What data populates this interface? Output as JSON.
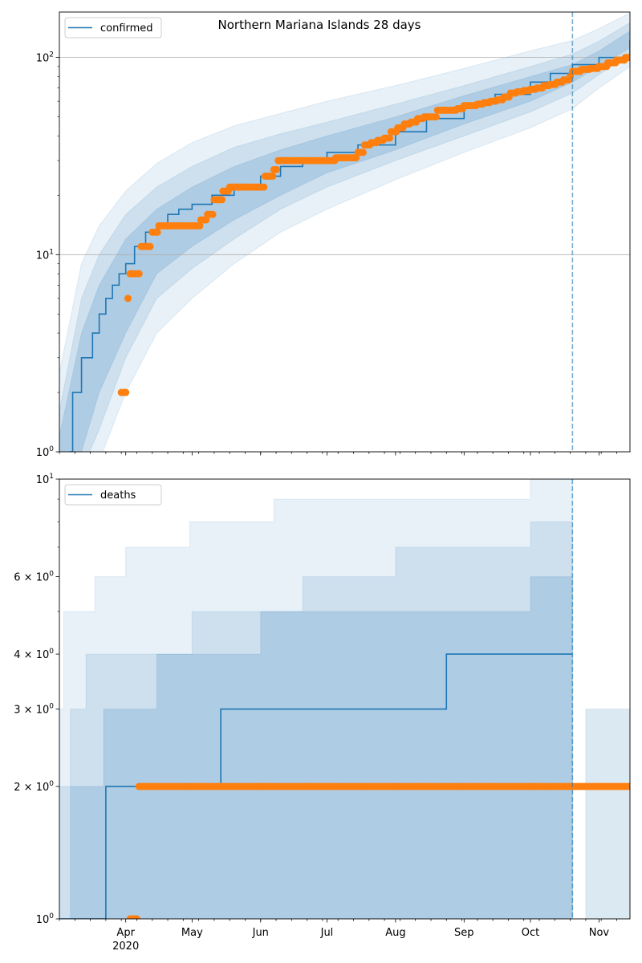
{
  "chart_data": [
    {
      "type": "line",
      "title": "Northern Mariana Islands 28 days",
      "yscale": "log",
      "ylim": [
        1,
        170
      ],
      "xlim": [
        "2020-03-02",
        "2020-11-15"
      ],
      "grid": "horizontal major",
      "legend": {
        "position": "top-left",
        "entries": [
          "confirmed"
        ]
      },
      "y_ticks": [
        {
          "value": 1,
          "base": "10",
          "exp": "0"
        },
        {
          "value": 10,
          "base": "10",
          "exp": "1"
        },
        {
          "value": 100,
          "base": "10",
          "exp": "2"
        }
      ],
      "forecast_start": "2020-10-20",
      "colors": {
        "model": "#1f77b4",
        "observed": "#ff7f0e",
        "band": "#1f77b4",
        "grid": "#b0b0b0"
      },
      "series": [
        {
          "name": "confirmed",
          "kind": "line",
          "x": [
            "2020-03-02",
            "2020-03-07",
            "2020-03-08",
            "2020-03-10",
            "2020-03-12",
            "2020-03-14",
            "2020-03-17",
            "2020-03-20",
            "2020-03-23",
            "2020-03-26",
            "2020-03-29",
            "2020-04-01",
            "2020-04-05",
            "2020-04-10",
            "2020-04-15",
            "2020-04-20",
            "2020-04-25",
            "2020-05-01",
            "2020-05-10",
            "2020-05-20",
            "2020-06-01",
            "2020-06-10",
            "2020-06-20",
            "2020-07-01",
            "2020-07-15",
            "2020-08-01",
            "2020-08-15",
            "2020-09-01",
            "2020-09-15",
            "2020-10-01",
            "2020-10-10",
            "2020-10-20",
            "2020-11-01",
            "2020-11-15"
          ],
          "y": [
            0.8,
            1,
            2,
            2,
            3,
            3,
            4,
            5,
            6,
            7,
            8,
            9,
            11,
            13,
            14,
            16,
            17,
            18,
            20,
            22,
            25,
            28,
            30,
            33,
            36,
            42,
            49,
            58,
            65,
            75,
            83,
            92,
            100,
            122
          ]
        },
        {
          "name": "observed confirmed",
          "kind": "scatter",
          "x": [
            "2020-03-30",
            "2020-04-01",
            "2020-04-02",
            "2020-04-03",
            "2020-04-07",
            "2020-04-08",
            "2020-04-12",
            "2020-04-13",
            "2020-04-16",
            "2020-04-20",
            "2020-04-23",
            "2020-04-27",
            "2020-05-01",
            "2020-05-05",
            "2020-05-08",
            "2020-05-11",
            "2020-05-15",
            "2020-05-18",
            "2020-05-22",
            "2020-05-26",
            "2020-05-30",
            "2020-06-03",
            "2020-06-07",
            "2020-06-09",
            "2020-06-12",
            "2020-06-15",
            "2020-06-19",
            "2020-06-23",
            "2020-06-27",
            "2020-07-01",
            "2020-07-05",
            "2020-07-09",
            "2020-07-13",
            "2020-07-15",
            "2020-07-18",
            "2020-07-21",
            "2020-07-24",
            "2020-07-27",
            "2020-07-30",
            "2020-08-02",
            "2020-08-05",
            "2020-08-08",
            "2020-08-11",
            "2020-08-14",
            "2020-08-17",
            "2020-08-20",
            "2020-08-23",
            "2020-08-26",
            "2020-08-29",
            "2020-09-01",
            "2020-09-04",
            "2020-09-07",
            "2020-09-10",
            "2020-09-13",
            "2020-09-16",
            "2020-09-19",
            "2020-09-22",
            "2020-09-25",
            "2020-09-28",
            "2020-10-01",
            "2020-10-04",
            "2020-10-07",
            "2020-10-10",
            "2020-10-13",
            "2020-10-16",
            "2020-10-19",
            "2020-10-20",
            "2020-10-24",
            "2020-10-28",
            "2020-11-01",
            "2020-11-05",
            "2020-11-09",
            "2020-11-13",
            "2020-11-15"
          ],
          "y": [
            2,
            2,
            6,
            8,
            8,
            11,
            11,
            13,
            14,
            14,
            14,
            14,
            14,
            15,
            16,
            19,
            21,
            22,
            22,
            22,
            22,
            25,
            27,
            30,
            30,
            30,
            30,
            30,
            30,
            30,
            31,
            31,
            31,
            33,
            36,
            37,
            38,
            39,
            42,
            44,
            46,
            47,
            49,
            50,
            50,
            54,
            54,
            54,
            55,
            57,
            57,
            58,
            59,
            60,
            61,
            63,
            66,
            67,
            68,
            69,
            70,
            72,
            73,
            75,
            77,
            80,
            85,
            87,
            88,
            90,
            94,
            97,
            100,
            100
          ]
        }
      ],
      "bands": [
        {
          "x": [
            "2020-03-02",
            "2020-03-12",
            "2020-03-20",
            "2020-04-01",
            "2020-04-15",
            "2020-05-01",
            "2020-05-20",
            "2020-06-10",
            "2020-07-01",
            "2020-08-01",
            "2020-09-01",
            "2020-10-01",
            "2020-10-20",
            "2020-11-01",
            "2020-11-15"
          ],
          "lo": [
            0.7,
            0.7,
            0.9,
            2,
            4,
            6,
            9,
            13,
            17,
            24,
            33,
            44,
            55,
            70,
            90
          ],
          "hi": [
            2.5,
            9,
            14,
            21,
            29,
            37,
            45,
            52,
            60,
            72,
            88,
            108,
            122,
            140,
            168
          ]
        },
        {
          "x": [
            "2020-03-02",
            "2020-03-12",
            "2020-03-20",
            "2020-04-01",
            "2020-04-15",
            "2020-05-01",
            "2020-05-20",
            "2020-06-10",
            "2020-07-01",
            "2020-08-01",
            "2020-09-01",
            "2020-10-01",
            "2020-10-20",
            "2020-11-01",
            "2020-11-15"
          ],
          "lo": [
            0.7,
            0.8,
            1.3,
            3,
            6,
            8.5,
            12,
            17,
            22,
            30,
            40,
            53,
            66,
            82,
            104
          ],
          "hi": [
            1.6,
            6,
            10,
            16,
            22,
            28,
            35,
            41,
            47,
            58,
            72,
            90,
            104,
            121,
            150
          ]
        },
        {
          "x": [
            "2020-03-02",
            "2020-03-12",
            "2020-03-20",
            "2020-04-01",
            "2020-04-15",
            "2020-05-01",
            "2020-05-20",
            "2020-06-10",
            "2020-07-01",
            "2020-08-01",
            "2020-09-01",
            "2020-10-01",
            "2020-10-20",
            "2020-11-01",
            "2020-11-15"
          ],
          "lo": [
            0.7,
            1,
            2,
            4,
            8,
            11,
            15,
            20,
            26,
            34,
            46,
            60,
            75,
            90,
            112
          ],
          "hi": [
            1.2,
            4,
            7,
            12,
            17,
            22,
            28,
            34,
            40,
            50,
            64,
            80,
            92,
            108,
            136
          ]
        }
      ]
    },
    {
      "type": "line",
      "title": "",
      "yscale": "log",
      "ylim": [
        1,
        10
      ],
      "xlim": [
        "2020-03-02",
        "2020-11-15"
      ],
      "legend": {
        "position": "top-left",
        "entries": [
          "deaths"
        ]
      },
      "y_ticks": [
        {
          "value": 1,
          "base": "10",
          "exp": "0",
          "coef": ""
        },
        {
          "value": 2,
          "base": "10",
          "exp": "0",
          "coef": "2 × "
        },
        {
          "value": 3,
          "base": "10",
          "exp": "0",
          "coef": "3 × "
        },
        {
          "value": 4,
          "base": "10",
          "exp": "0",
          "coef": "4 × "
        },
        {
          "value": 6,
          "base": "10",
          "exp": "0",
          "coef": "6 × "
        },
        {
          "value": 10,
          "base": "10",
          "exp": "1",
          "coef": ""
        }
      ],
      "forecast_start": "2020-10-20",
      "series": [
        {
          "name": "deaths",
          "kind": "step",
          "x": [
            "2020-03-02",
            "2020-03-23",
            "2020-04-08",
            "2020-05-14",
            "2020-08-24",
            "2020-10-20"
          ],
          "y": [
            1,
            2,
            2,
            3,
            4,
            4
          ]
        },
        {
          "name": "observed deaths",
          "kind": "scatter",
          "x": [
            "2020-04-03",
            "2020-04-06",
            "2020-04-07",
            "2020-05-01",
            "2020-06-01",
            "2020-07-01",
            "2020-08-01",
            "2020-09-01",
            "2020-10-01",
            "2020-11-01",
            "2020-11-15"
          ],
          "y": [
            1,
            1,
            2,
            2,
            2,
            2,
            2,
            2,
            2,
            2,
            2
          ]
        }
      ],
      "bands": [
        {
          "x": [
            "2020-03-02",
            "2020-03-04",
            "2020-03-18",
            "2020-04-01",
            "2020-04-30",
            "2020-06-07",
            "2020-08-01",
            "2020-10-01",
            "2020-10-20"
          ],
          "lo": [
            1,
            1,
            1,
            1,
            1,
            1,
            1,
            1,
            1
          ],
          "hi": [
            3,
            5,
            6,
            7,
            8,
            9,
            9,
            10,
            10
          ]
        },
        {
          "x": [
            "2020-03-02",
            "2020-03-07",
            "2020-03-14",
            "2020-04-03",
            "2020-05-01",
            "2020-06-20",
            "2020-08-01",
            "2020-10-01",
            "2020-10-20"
          ],
          "lo": [
            1,
            1,
            1,
            1,
            1,
            1,
            1,
            1,
            1
          ],
          "hi": [
            2,
            3,
            4,
            4,
            5,
            6,
            7,
            8,
            8
          ]
        },
        {
          "x": [
            "2020-03-02",
            "2020-03-07",
            "2020-03-22",
            "2020-04-15",
            "2020-06-01",
            "2020-08-01",
            "2020-10-01",
            "2020-10-20"
          ],
          "lo": [
            1,
            1,
            1,
            1,
            1,
            1,
            1,
            1
          ],
          "hi": [
            1,
            2,
            3,
            4,
            5,
            5,
            6,
            6
          ]
        }
      ],
      "post_bands": [
        {
          "x": [
            "2020-10-26",
            "2020-11-15"
          ],
          "lo": [
            1,
            1
          ],
          "hi": [
            3,
            4
          ]
        }
      ]
    }
  ],
  "x_axis": {
    "months": [
      {
        "date": "2020-04-01",
        "label": "Apr",
        "sub": "2020"
      },
      {
        "date": "2020-05-01",
        "label": "May",
        "sub": ""
      },
      {
        "date": "2020-06-01",
        "label": "Jun",
        "sub": ""
      },
      {
        "date": "2020-07-01",
        "label": "Jul",
        "sub": ""
      },
      {
        "date": "2020-08-01",
        "label": "Aug",
        "sub": ""
      },
      {
        "date": "2020-09-01",
        "label": "Sep",
        "sub": ""
      },
      {
        "date": "2020-10-01",
        "label": "Oct",
        "sub": ""
      },
      {
        "date": "2020-11-01",
        "label": "Nov",
        "sub": ""
      }
    ]
  }
}
